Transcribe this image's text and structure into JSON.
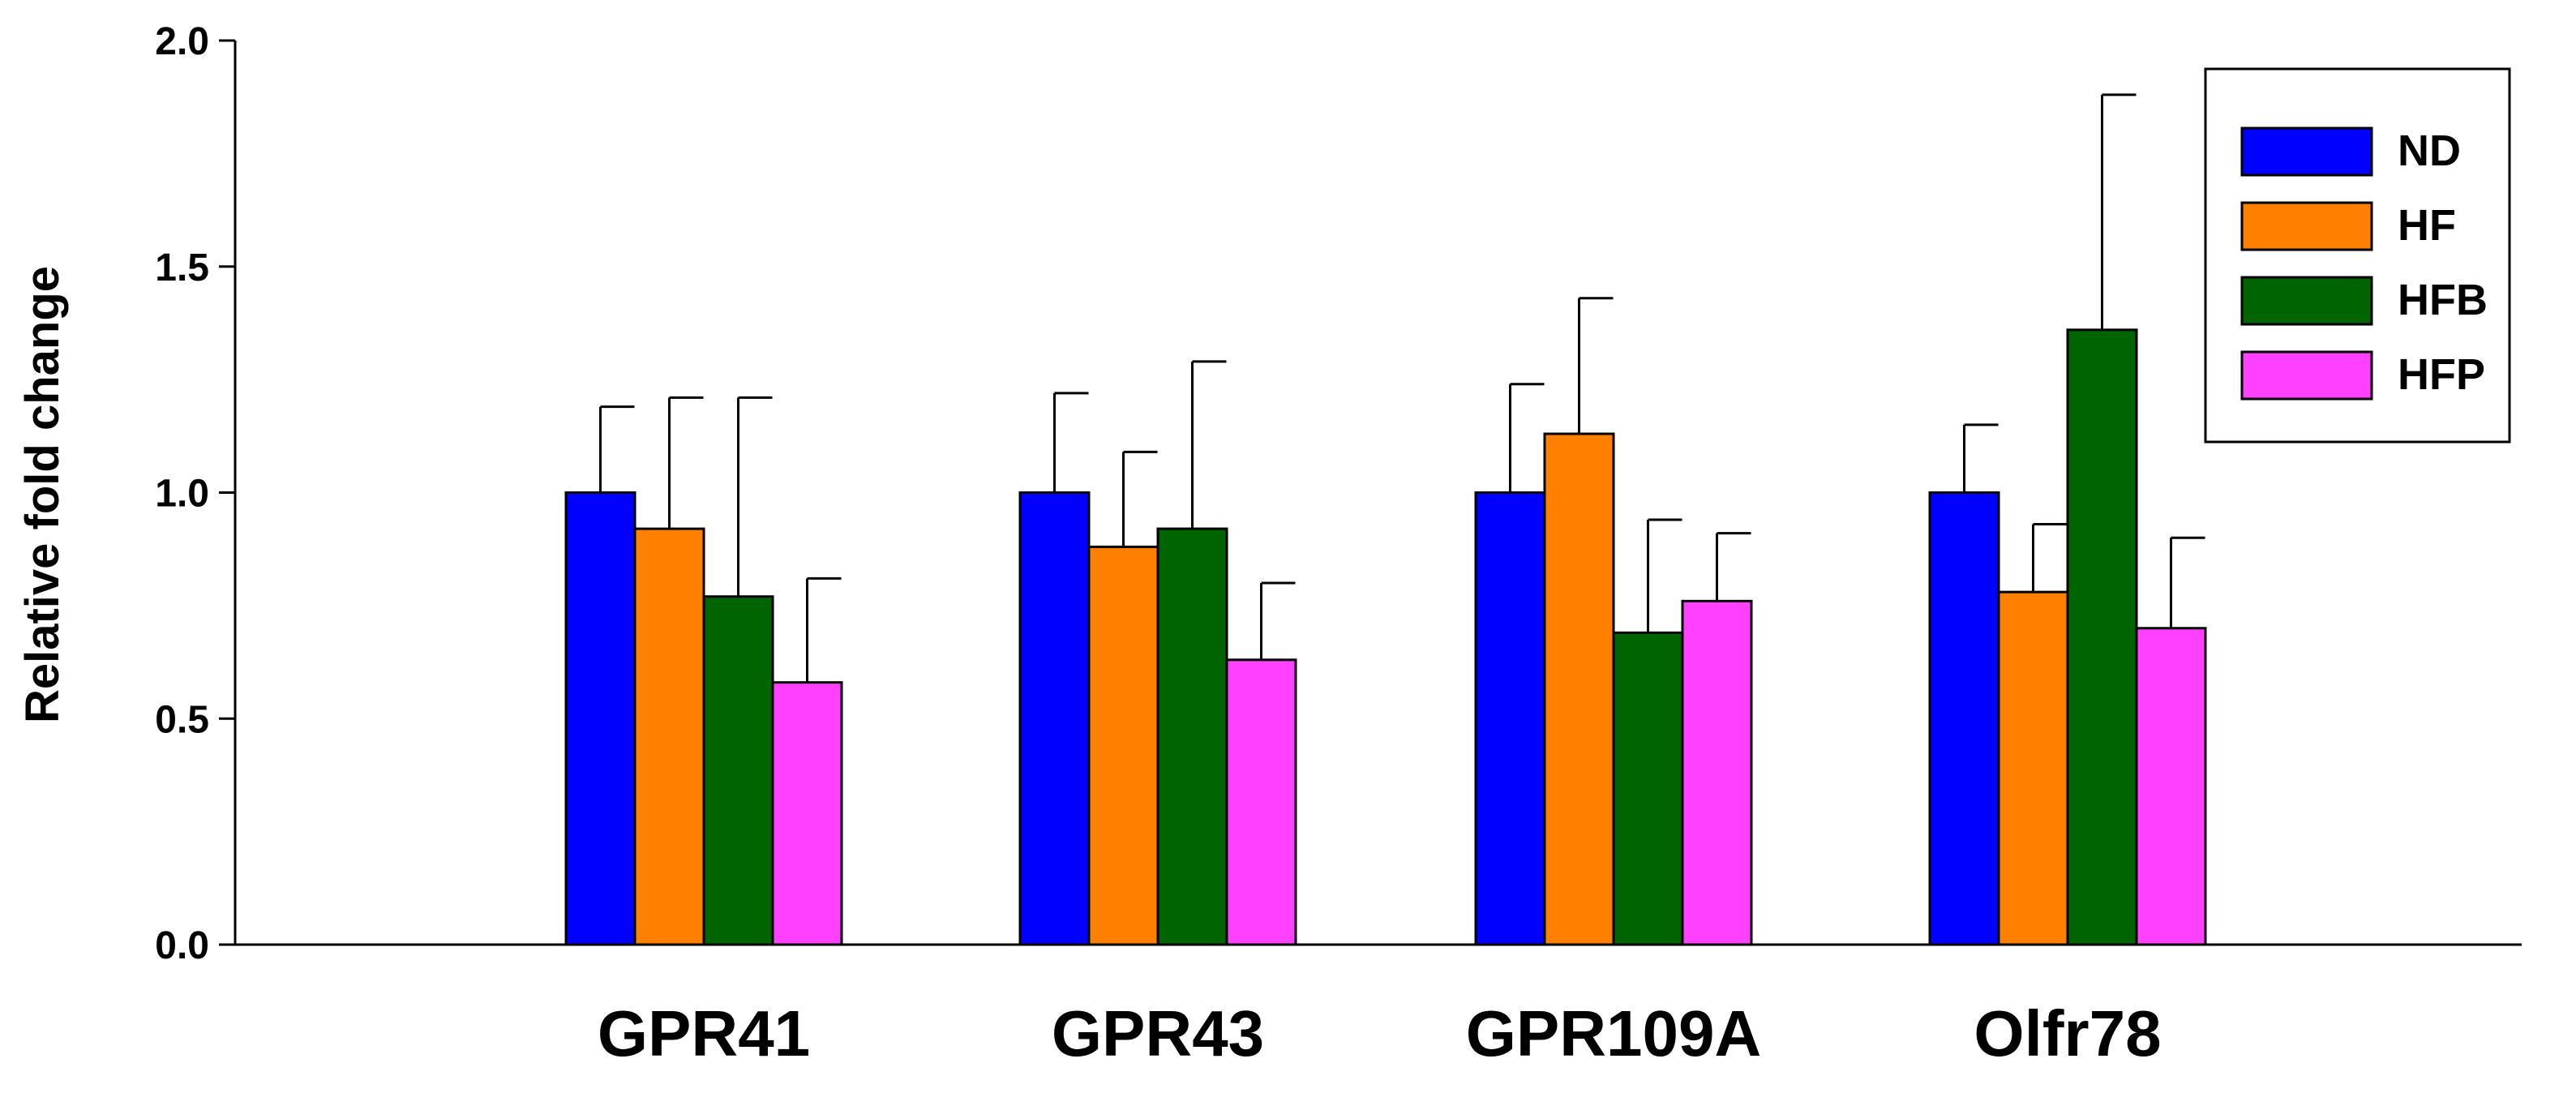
{
  "chart_data": {
    "type": "bar",
    "title": "",
    "xlabel": "",
    "ylabel": "Relative fold change",
    "ylim": [
      0,
      2.0
    ],
    "yticks": [
      "0.0",
      "0.5",
      "1.0",
      "1.5",
      "2.0"
    ],
    "ytick_values": [
      0,
      0.5,
      1.0,
      1.5,
      2.0
    ],
    "grid": false,
    "legend_position": "top-right",
    "categories": [
      "GPR41",
      "GPR43",
      "GPR109A",
      "Olfr78"
    ],
    "series": [
      {
        "name": "ND",
        "color": "#0000ff",
        "values": [
          1.0,
          1.0,
          1.0,
          1.0
        ],
        "errors": [
          0.19,
          0.22,
          0.24,
          0.15
        ]
      },
      {
        "name": "HF",
        "color": "#ff8000",
        "values": [
          0.92,
          0.88,
          1.13,
          0.78
        ],
        "errors": [
          0.29,
          0.21,
          0.3,
          0.15
        ]
      },
      {
        "name": "HFB",
        "color": "#006400",
        "values": [
          0.77,
          0.92,
          0.69,
          1.36
        ],
        "errors": [
          0.44,
          0.37,
          0.25,
          0.52
        ]
      },
      {
        "name": "HFP",
        "color": "#ff40ff",
        "values": [
          0.58,
          0.63,
          0.76,
          0.7
        ],
        "errors": [
          0.23,
          0.17,
          0.15,
          0.2
        ]
      }
    ]
  }
}
